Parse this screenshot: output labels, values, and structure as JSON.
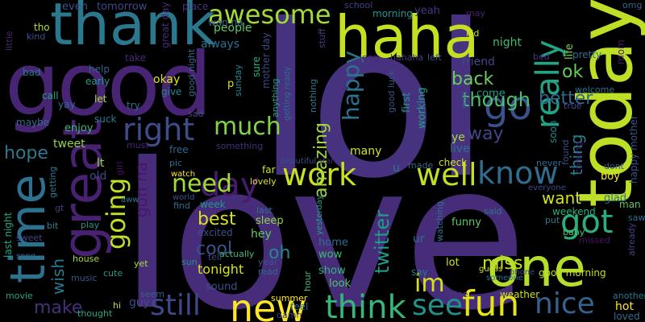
{
  "words": [
    {
      "text": "lol",
      "color": "#46327e"
    },
    {
      "text": "love",
      "color": "#472c7a"
    },
    {
      "text": "good",
      "color": "#482475"
    },
    {
      "text": "today",
      "color": "#bddf26"
    },
    {
      "text": "haha",
      "color": "#c5e021"
    },
    {
      "text": "thank",
      "color": "#2a788e"
    },
    {
      "text": "time",
      "color": "#2c718e"
    },
    {
      "text": "great",
      "color": "#482173"
    },
    {
      "text": "one",
      "color": "#b5de2b"
    },
    {
      "text": "go",
      "color": "#3b518b"
    },
    {
      "text": "new",
      "color": "#fde725"
    },
    {
      "text": "fun",
      "color": "#e5e419"
    },
    {
      "text": "know",
      "color": "#2f6c8e"
    },
    {
      "text": "well",
      "color": "#c2df23"
    },
    {
      "text": "work",
      "color": "#cae11f"
    },
    {
      "text": "right",
      "color": "#3e4c8a"
    },
    {
      "text": "think",
      "color": "#35b779"
    },
    {
      "text": "see",
      "color": "#21918c"
    },
    {
      "text": "awesome",
      "color": "#a0da39"
    },
    {
      "text": "really",
      "color": "#21a585"
    },
    {
      "text": "day",
      "color": "#481b6d"
    },
    {
      "text": "much",
      "color": "#83d34b"
    },
    {
      "text": "still",
      "color": "#3f4889"
    },
    {
      "text": "got",
      "color": "#2ab07f"
    },
    {
      "text": "nice",
      "color": "#33628d"
    },
    {
      "text": "need",
      "color": "#a2da37"
    },
    {
      "text": "going",
      "color": "#bddf26"
    },
    {
      "text": "im",
      "color": "#d2e21b"
    },
    {
      "text": "though",
      "color": "#4ac16d"
    },
    {
      "text": "better",
      "color": "#31688e"
    },
    {
      "text": "happy",
      "color": "#2c728e"
    },
    {
      "text": "amazing",
      "color": "#9dd93b"
    },
    {
      "text": "twitter",
      "color": "#1e9c89"
    },
    {
      "text": "back",
      "color": "#6ccd5a"
    },
    {
      "text": "ok",
      "color": "#67cc5c"
    },
    {
      "text": "cool",
      "color": "#3b528b"
    },
    {
      "text": "want",
      "color": "#d2e21b"
    },
    {
      "text": "best",
      "color": "#d8e219"
    },
    {
      "text": "way",
      "color": "#3f4788"
    },
    {
      "text": "miss",
      "color": "#c2df23"
    },
    {
      "text": "make",
      "color": "#46307e"
    },
    {
      "text": "wish",
      "color": "#2a788e"
    },
    {
      "text": "hope",
      "color": "#2a788e"
    },
    {
      "text": "gon na",
      "color": "#481769"
    },
    {
      "text": "thing",
      "color": "#26828e"
    },
    {
      "text": "oh",
      "color": "#23888e"
    },
    {
      "text": "tonight",
      "color": "#d8e219"
    },
    {
      "text": "even",
      "color": "#39568c"
    },
    {
      "text": "tomorrow",
      "color": "#3e4989"
    },
    {
      "text": "great day",
      "color": "#472d7b"
    },
    {
      "text": "place",
      "color": "#46327e"
    },
    {
      "text": "people",
      "color": "#5ec962"
    },
    {
      "text": "always",
      "color": "#2c718e"
    },
    {
      "text": "wan na",
      "color": "#365d8d"
    },
    {
      "text": "school",
      "color": "#414487"
    },
    {
      "text": "morning",
      "color": "#1f9a8a"
    },
    {
      "text": "yeah",
      "color": "#443983"
    },
    {
      "text": "may",
      "color": "#482071"
    },
    {
      "text": "omg",
      "color": "#31688e"
    },
    {
      "text": "kid",
      "color": "#cde11d"
    },
    {
      "text": "night",
      "color": "#3dbc74"
    },
    {
      "text": "friend",
      "color": "#3f4788"
    },
    {
      "text": "left",
      "color": "#3b528b"
    },
    {
      "text": "life",
      "color": "#7fd34e"
    },
    {
      "text": "pretty",
      "color": "#2f6c8e"
    },
    {
      "text": "mom",
      "color": "#481a6c"
    },
    {
      "text": "bed",
      "color": "#46337f"
    },
    {
      "text": "come",
      "color": "#1f9e89"
    },
    {
      "text": "first",
      "color": "#21918c"
    },
    {
      "text": "working",
      "color": "#1fa088"
    },
    {
      "text": "good luck",
      "color": "#3b528b"
    },
    {
      "text": "little",
      "color": "#482173"
    },
    {
      "text": "kind",
      "color": "#3b518b"
    },
    {
      "text": "tho",
      "color": "#b5de2b"
    },
    {
      "text": "bad",
      "color": "#2a778e"
    },
    {
      "text": "help",
      "color": "#31668e"
    },
    {
      "text": "early",
      "color": "#1f9e89"
    },
    {
      "text": "take",
      "color": "#482878"
    },
    {
      "text": "call",
      "color": "#23a983"
    },
    {
      "text": "yay",
      "color": "#2e6d8e"
    },
    {
      "text": "let",
      "color": "#a5db36"
    },
    {
      "text": "try",
      "color": "#2c738e"
    },
    {
      "text": "maybe",
      "color": "#2e6f8e"
    },
    {
      "text": "suck",
      "color": "#287c8e"
    },
    {
      "text": "sad",
      "color": "#3e4989"
    },
    {
      "text": "okay",
      "color": "#dde318"
    },
    {
      "text": "give",
      "color": "#23888e"
    },
    {
      "text": "good night",
      "color": "#31678e"
    },
    {
      "text": "sunday",
      "color": "#24878e"
    },
    {
      "text": "sure",
      "color": "#26ad81"
    },
    {
      "text": "mother day",
      "color": "#3e4a89"
    },
    {
      "text": "anything",
      "color": "#20a386"
    },
    {
      "text": "stuff",
      "color": "#423f85"
    },
    {
      "text": "getting ready",
      "color": "#2d708e"
    },
    {
      "text": "nothing",
      "color": "#2a768e"
    },
    {
      "text": "long",
      "color": "#482677"
    },
    {
      "text": "hahaha",
      "color": "#443a83"
    },
    {
      "text": "welcome",
      "color": "#2c738e"
    },
    {
      "text": "true",
      "color": "#3e4989"
    },
    {
      "text": "wait",
      "color": "#3d4d8a"
    },
    {
      "text": "soon",
      "color": "#23898e"
    },
    {
      "text": "enjoy",
      "color": "#3aba76"
    },
    {
      "text": "tweet",
      "color": "#90d743"
    },
    {
      "text": "must",
      "color": "#482576"
    },
    {
      "text": "girl",
      "color": "#470d60"
    },
    {
      "text": "lt",
      "color": "#93d741"
    },
    {
      "text": "old",
      "color": "#3f4788"
    },
    {
      "text": "free",
      "color": "#31668e"
    },
    {
      "text": "pic",
      "color": "#2f6b8e"
    },
    {
      "text": "watch",
      "color": "#fde725"
    },
    {
      "text": "something",
      "color": "#472f7d"
    },
    {
      "text": "beautiful",
      "color": "#3d4e8a"
    },
    {
      "text": "start",
      "color": "#472c7a"
    },
    {
      "text": "check",
      "color": "#cde11d"
    },
    {
      "text": "made",
      "color": "#31668e"
    },
    {
      "text": "ye",
      "color": "#a5db36"
    },
    {
      "text": "live",
      "color": "#2c718e"
    },
    {
      "text": "many",
      "color": "#d5e21a"
    },
    {
      "text": "found",
      "color": "#3e4c8a"
    },
    {
      "text": "coming",
      "color": "#481f70"
    },
    {
      "text": "never",
      "color": "#31688e"
    },
    {
      "text": "dont",
      "color": "#3b528b"
    },
    {
      "text": "boy",
      "color": "#fde725"
    },
    {
      "text": "happy mother",
      "color": "#39558c"
    },
    {
      "text": "glad",
      "color": "#2d708e"
    },
    {
      "text": "man",
      "color": "#5ec962"
    },
    {
      "text": "everyone",
      "color": "#3f4788"
    },
    {
      "text": "weekend",
      "color": "#29af7f"
    },
    {
      "text": "saw",
      "color": "#2d708e"
    },
    {
      "text": "already",
      "color": "#414487"
    },
    {
      "text": "baby",
      "color": "#4ac16d"
    },
    {
      "text": "missed",
      "color": "#471063"
    },
    {
      "text": "funny",
      "color": "#5ac864"
    },
    {
      "text": "said",
      "color": "#2a788e"
    },
    {
      "text": "yesterday",
      "color": "#20a386"
    },
    {
      "text": "last",
      "color": "#2a768e"
    },
    {
      "text": "sleep",
      "color": "#90d743"
    },
    {
      "text": "hey",
      "color": "#5ec962"
    },
    {
      "text": "far",
      "color": "#c8e020"
    },
    {
      "text": "lovely",
      "color": "#dae319"
    },
    {
      "text": "world",
      "color": "#3b528b"
    },
    {
      "text": "find",
      "color": "#2c718e"
    },
    {
      "text": "week",
      "color": "#1f9a8a"
    },
    {
      "text": "excited",
      "color": "#3b528b"
    },
    {
      "text": "actually",
      "color": "#38b977"
    },
    {
      "text": "last night",
      "color": "#22a785"
    },
    {
      "text": "getting",
      "color": "#2a788e"
    },
    {
      "text": "sweet",
      "color": "#3e4a89"
    },
    {
      "text": "bit",
      "color": "#26828e"
    },
    {
      "text": "song",
      "color": "#31668e"
    },
    {
      "text": "play",
      "color": "#21918c"
    },
    {
      "text": "house",
      "color": "#a2da37"
    },
    {
      "text": "lot",
      "color": "#d0e11c"
    },
    {
      "text": "watching",
      "color": "#2d708e"
    },
    {
      "text": "ur",
      "color": "#2e6f8e"
    },
    {
      "text": "wow",
      "color": "#3dbc74"
    },
    {
      "text": "home",
      "color": "#2e6d8e"
    },
    {
      "text": "say",
      "color": "#2a778e"
    },
    {
      "text": "show",
      "color": "#31b57b"
    },
    {
      "text": "look",
      "color": "#4ec36b"
    },
    {
      "text": "good morning",
      "color": "#c2df23"
    },
    {
      "text": "guess",
      "color": "#c5e021"
    },
    {
      "text": "phone",
      "color": "#3e4a89"
    },
    {
      "text": "someone",
      "color": "#2d708e"
    },
    {
      "text": "put",
      "color": "#2a788e"
    },
    {
      "text": "yet",
      "color": "#a8db34"
    },
    {
      "text": "cute",
      "color": "#1f9a8a"
    },
    {
      "text": "music",
      "color": "#39568c"
    },
    {
      "text": "movie",
      "color": "#20a486"
    },
    {
      "text": "hi",
      "color": "#c2df23"
    },
    {
      "text": "thought",
      "color": "#22a884"
    },
    {
      "text": "seem",
      "color": "#33638d"
    },
    {
      "text": "guy",
      "color": "#3e4c8a"
    },
    {
      "text": "sound",
      "color": "#3b528b"
    },
    {
      "text": "hour",
      "color": "#3dbc74"
    },
    {
      "text": "summer",
      "color": "#fde725"
    },
    {
      "text": "feel",
      "color": "#2d718e"
    },
    {
      "text": "damn",
      "color": "#3f4788"
    },
    {
      "text": "year",
      "color": "#39568c"
    },
    {
      "text": "read",
      "color": "#31688e"
    },
    {
      "text": "done",
      "color": "#453581"
    },
    {
      "text": "weather",
      "color": "#cde11d"
    },
    {
      "text": "hot",
      "color": "#fde725"
    },
    {
      "text": "loved",
      "color": "#2f6c8e"
    },
    {
      "text": "another",
      "color": "#2a778e"
    },
    {
      "text": "tell",
      "color": "#3e4989"
    },
    {
      "text": "sun",
      "color": "#21918c"
    },
    {
      "text": "aww",
      "color": "#2a788e"
    },
    {
      "text": "p",
      "color": "#dae319"
    },
    {
      "text": "u",
      "color": "#2a788e"
    },
    {
      "text": "gt",
      "color": "#433e85"
    }
  ]
}
